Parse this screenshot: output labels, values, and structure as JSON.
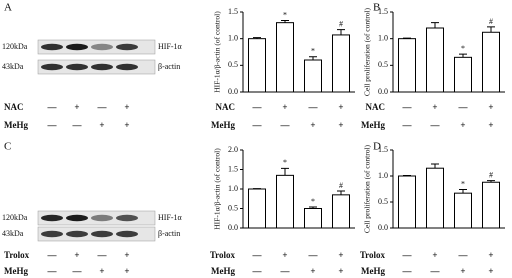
{
  "panels": [
    "A",
    "B",
    "C",
    "D"
  ],
  "blots": [
    {
      "size_labels": [
        "120kDa",
        "43kDa"
      ],
      "protein_labels": [
        "HIF-1α",
        "β-actin"
      ],
      "rows": [
        {
          "name": "NAC",
          "signs": [
            "—",
            "+",
            "—",
            "+"
          ]
        },
        {
          "name": "MeHg",
          "signs": [
            "—",
            "—",
            "+",
            "+"
          ]
        }
      ]
    },
    {
      "size_labels": [
        "120kDa",
        "43kDa"
      ],
      "protein_labels": [
        "HIF-1α",
        "β-actin"
      ],
      "rows": [
        {
          "name": "Trolox",
          "signs": [
            "—",
            "+",
            "—",
            "+"
          ]
        },
        {
          "name": "MeHg",
          "signs": [
            "—",
            "—",
            "+",
            "+"
          ]
        }
      ]
    }
  ],
  "chart_data": [
    {
      "type": "bar",
      "y_label": "HIF-1α/β-actin (of control)",
      "values": [
        1.0,
        1.3,
        0.6,
        1.07
      ],
      "errors": [
        0.02,
        0.04,
        0.06,
        0.1
      ],
      "annotations": [
        null,
        "*",
        "*",
        "#"
      ],
      "color": "#ffffff",
      "ylim": [
        0,
        1.5
      ],
      "yticks": [
        {
          "value": 0,
          "label": "0.0"
        },
        0.5,
        {
          "value": 1,
          "label": "1.0"
        },
        1.5
      ],
      "rows": [
        {
          "name": "NAC",
          "signs": [
            "—",
            "+",
            "—",
            "+"
          ]
        },
        {
          "name": "MeHg",
          "signs": [
            "—",
            "—",
            "+",
            "+"
          ]
        }
      ]
    },
    {
      "type": "bar",
      "y_label": "Cell proliferation (of control)",
      "values": [
        1.0,
        1.2,
        0.65,
        1.12
      ],
      "errors": [
        0.01,
        0.1,
        0.06,
        0.1
      ],
      "annotations": [
        null,
        null,
        "*",
        "#"
      ],
      "color": "#ffffff",
      "ylim": [
        0,
        1.5
      ],
      "yticks": [
        {
          "value": 0,
          "label": "0.0"
        },
        0.5,
        {
          "value": 1,
          "label": "1.0"
        },
        1.5
      ],
      "rows": [
        {
          "name": "NAC",
          "signs": [
            "—",
            "+",
            "—",
            "+"
          ]
        },
        {
          "name": "MeHg",
          "signs": [
            "—",
            "—",
            "+",
            "+"
          ]
        }
      ]
    },
    {
      "type": "bar",
      "y_label": "HIF-1α/β-actin (of control)",
      "values": [
        1.0,
        1.35,
        0.5,
        0.85
      ],
      "errors": [
        0.01,
        0.18,
        0.04,
        0.1
      ],
      "annotations": [
        null,
        "*",
        "*",
        "#"
      ],
      "color": "#ffffff",
      "ylim": [
        0,
        2
      ],
      "yticks": [
        {
          "value": 0,
          "label": "0.0"
        },
        0.5,
        {
          "value": 1,
          "label": "1.0"
        },
        1.5,
        {
          "value": 2,
          "label": "2.0"
        }
      ],
      "rows": [
        {
          "name": "Trolox",
          "signs": [
            "—",
            "+",
            "—",
            "+"
          ]
        },
        {
          "name": "MeHg",
          "signs": [
            "—",
            "—",
            "+",
            "+"
          ]
        }
      ]
    },
    {
      "type": "bar",
      "y_label": "Cell proliferation (of control)",
      "values": [
        1.0,
        1.15,
        0.67,
        0.88
      ],
      "errors": [
        0.01,
        0.08,
        0.07,
        0.03
      ],
      "annotations": [
        null,
        null,
        "*",
        "#"
      ],
      "color": "#ffffff",
      "ylim": [
        0,
        1.5
      ],
      "yticks": [
        {
          "value": 0,
          "label": "0.0"
        },
        0.5,
        {
          "value": 1,
          "label": "1.0"
        },
        1.5
      ],
      "rows": [
        {
          "name": "Trolox",
          "signs": [
            "—",
            "+",
            "—",
            "+"
          ]
        },
        {
          "name": "MeHg",
          "signs": [
            "—",
            "—",
            "+",
            "+"
          ]
        }
      ]
    }
  ]
}
